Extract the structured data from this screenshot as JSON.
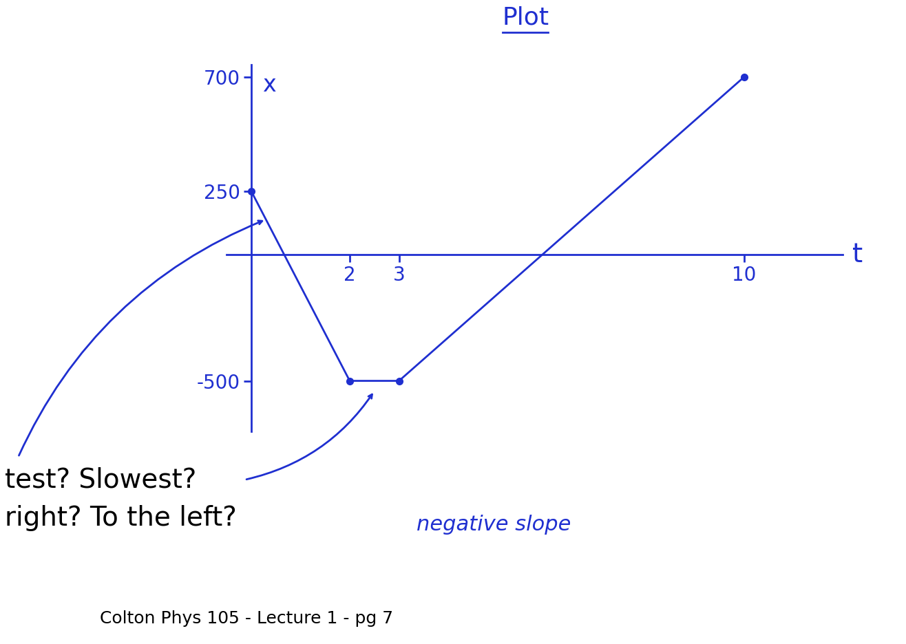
{
  "chart_data": {
    "type": "line",
    "title": "Plot",
    "x_label": "t",
    "y_label": "x",
    "x": [
      0,
      2,
      3,
      10
    ],
    "values": [
      250,
      -500,
      -500,
      700
    ],
    "color": "#1f2fd0",
    "marker": "o",
    "xlim": [
      -0.5,
      12
    ],
    "ylim": [
      -700,
      750
    ],
    "xticks": [
      2,
      3,
      10
    ],
    "yticks": [
      -500,
      250,
      700
    ],
    "annotations": [
      "test? Slowest?",
      "right? To the left?",
      "negative slope"
    ],
    "footer": "Colton Phys 105 - Lecture 1 - pg 7"
  }
}
